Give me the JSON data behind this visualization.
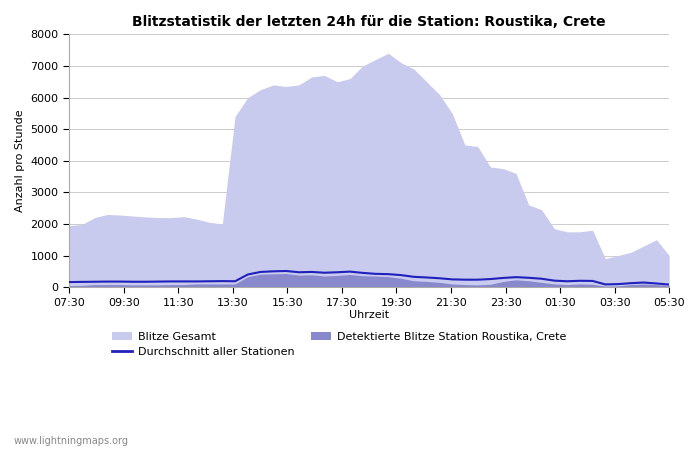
{
  "title": "Blitzstatistik der letzten 24h für die Station: Roustika, Crete",
  "xlabel": "Uhrzeit",
  "ylabel": "Anzahl pro Stunde",
  "ylim": [
    0,
    8000
  ],
  "yticks": [
    0,
    1000,
    2000,
    3000,
    4000,
    5000,
    6000,
    7000,
    8000
  ],
  "xtick_labels": [
    "07:30",
    "09:30",
    "11:30",
    "13:30",
    "15:30",
    "17:30",
    "19:30",
    "21:30",
    "23:30",
    "01:30",
    "03:30",
    "05:30"
  ],
  "bg_color": "#ffffff",
  "plot_bg": "#ffffff",
  "grid_color": "#cccccc",
  "legend_labels": [
    "Blitze Gesamt",
    "Durchschnitt aller Stationen",
    "Detektierte Blitze Station Roustika, Crete"
  ],
  "color_gesamt": "#c8caee",
  "color_detektiert": "#8888cc",
  "color_avg_line": "#2020bb",
  "watermark": "www.lightningmaps.org",
  "blitze_gesamt": [
    1950,
    1980,
    2200,
    2300,
    2280,
    2250,
    2220,
    2200,
    2200,
    2230,
    2150,
    2050,
    2000,
    5400,
    6000,
    6250,
    6400,
    6350,
    6400,
    6650,
    6700,
    6500,
    6600,
    7000,
    7200,
    7400,
    7100,
    6900,
    6500,
    6100,
    5500,
    4500,
    4450,
    3800,
    3750,
    3600,
    2600,
    2450,
    1850,
    1750,
    1750,
    1800,
    900,
    1000,
    1100,
    1300,
    1500,
    1000
  ],
  "blitze_detektiert": [
    50,
    55,
    80,
    80,
    80,
    70,
    70,
    70,
    80,
    80,
    100,
    100,
    100,
    100,
    330,
    410,
    420,
    430,
    380,
    390,
    350,
    370,
    400,
    360,
    350,
    330,
    280,
    200,
    180,
    150,
    100,
    80,
    70,
    90,
    180,
    230,
    200,
    150,
    100,
    80,
    100,
    90,
    30,
    40,
    80,
    100,
    80,
    50
  ],
  "avg_line": [
    160,
    165,
    170,
    175,
    175,
    170,
    170,
    175,
    180,
    180,
    180,
    185,
    190,
    185,
    400,
    480,
    500,
    510,
    470,
    480,
    455,
    470,
    490,
    450,
    420,
    410,
    380,
    325,
    305,
    280,
    245,
    235,
    235,
    255,
    290,
    315,
    295,
    265,
    205,
    185,
    200,
    195,
    85,
    95,
    125,
    145,
    115,
    80
  ]
}
